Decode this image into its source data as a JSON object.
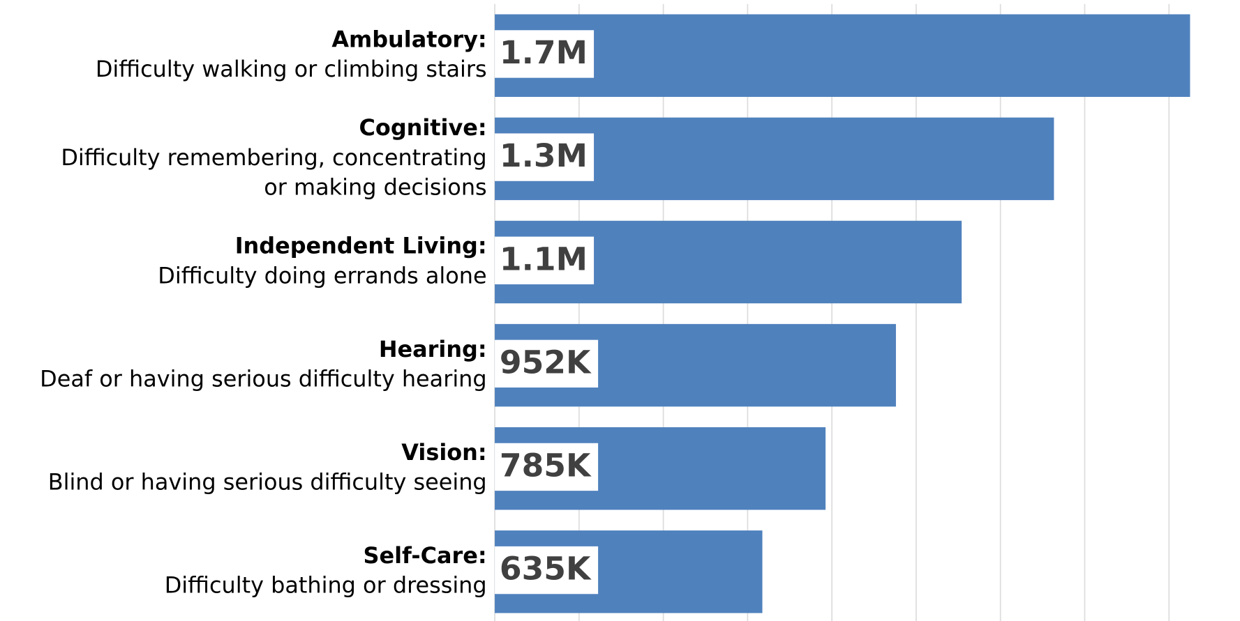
{
  "chart_data": {
    "type": "barh",
    "categories": [
      "Ambulatory:",
      "Cognitive:",
      "Independent Living:",
      "Hearing:",
      "Vision:",
      "Self-Care:"
    ],
    "descriptions": [
      [
        "Difficulty walking or climbing stairs"
      ],
      [
        "Difficulty remembering, concentrating",
        "or making decisions"
      ],
      [
        "Difficulty doing errands alone"
      ],
      [
        "Deaf or having serious difficulty hearing"
      ],
      [
        "Blind or having serious difficulty seeing"
      ],
      [
        "Difficulty bathing or dressing"
      ]
    ],
    "values": [
      1650000,
      1327000,
      1108000,
      952000,
      785000,
      635000
    ],
    "value_labels": [
      "1.7M",
      "1.3M",
      "1.1M",
      "952K",
      "785K",
      "635K"
    ],
    "color": "#4f81bd",
    "xlim": [
      0,
      1700000
    ],
    "xticks": [
      0,
      200000,
      400000,
      600000,
      800000,
      1000000,
      1200000,
      1400000,
      1600000
    ],
    "grid": true
  }
}
